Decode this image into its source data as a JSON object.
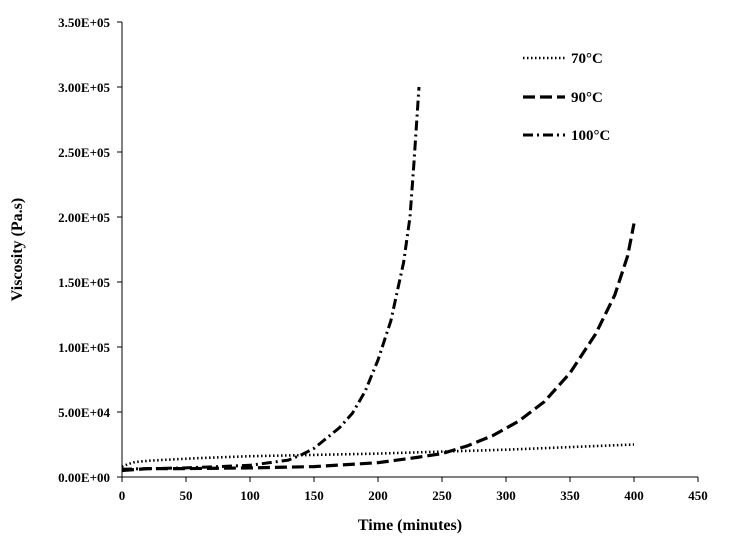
{
  "chart_data": {
    "type": "line",
    "xlabel": "Time (minutes)",
    "ylabel": "Viscosity (Pa.s)",
    "xlim": [
      0,
      450
    ],
    "ylim": [
      0,
      350000
    ],
    "x_ticks": [
      0,
      50,
      100,
      150,
      200,
      250,
      300,
      350,
      400,
      450
    ],
    "y_ticks": [
      0,
      50000,
      100000,
      150000,
      200000,
      250000,
      300000,
      350000
    ],
    "x_tick_labels": [
      "0",
      "50",
      "100",
      "150",
      "200",
      "250",
      "300",
      "350",
      "400",
      "450"
    ],
    "y_tick_labels": [
      "0.00E+00",
      "5.00E+04",
      "1.00E+05",
      "1.50E+05",
      "2.00E+05",
      "2.50E+05",
      "3.00E+05",
      "3.50E+05"
    ],
    "grid": false,
    "legend_position": "top-right",
    "series": [
      {
        "name": "70°C",
        "dash": "dotted",
        "x": [
          0,
          5,
          10,
          20,
          40,
          60,
          100,
          150,
          200,
          250,
          300,
          350,
          400
        ],
        "y": [
          8000,
          10000,
          11500,
          12500,
          13500,
          14500,
          16000,
          17000,
          18000,
          19500,
          21000,
          23000,
          25000
        ]
      },
      {
        "name": "90°C",
        "dash": "dashed",
        "x": [
          0,
          20,
          50,
          100,
          150,
          200,
          230,
          250,
          270,
          290,
          310,
          330,
          350,
          370,
          385,
          395,
          400
        ],
        "y": [
          5000,
          6500,
          6500,
          7000,
          8000,
          11000,
          15000,
          18000,
          24000,
          32000,
          43000,
          58000,
          80000,
          110000,
          140000,
          170000,
          195000
        ]
      },
      {
        "name": "100°C",
        "dash": "dash-dot",
        "x": [
          0,
          50,
          100,
          130,
          140,
          150,
          160,
          170,
          180,
          190,
          200,
          210,
          220,
          225,
          228,
          230,
          232
        ],
        "y": [
          6000,
          7000,
          9000,
          13000,
          17000,
          22000,
          30000,
          38000,
          49000,
          66000,
          90000,
          120000,
          165000,
          200000,
          240000,
          270000,
          300000
        ]
      }
    ]
  }
}
